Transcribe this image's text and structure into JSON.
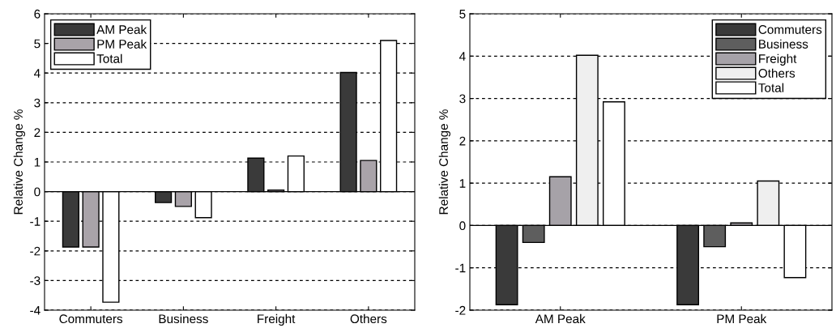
{
  "chart_data": [
    {
      "type": "bar",
      "categories": [
        "Commuters",
        "Business",
        "Freight",
        "Others"
      ],
      "ylabel": "Relative Change %",
      "ylim": [
        -4,
        6
      ],
      "yticks": [
        -4,
        -3,
        -2,
        -1,
        0,
        1,
        2,
        3,
        4,
        5,
        6
      ],
      "grid": "y",
      "legend": "top left",
      "series": [
        {
          "name": "AM Peak",
          "color": "#3a3a3a",
          "values": [
            -1.87,
            -0.37,
            1.13,
            4.02
          ]
        },
        {
          "name": "PM Peak",
          "color": "#a9a3a9",
          "values": [
            -1.87,
            -0.5,
            0.05,
            1.05
          ]
        },
        {
          "name": "Total",
          "color": "#ffffff",
          "values": [
            -3.73,
            -0.88,
            1.2,
            5.1
          ]
        }
      ]
    },
    {
      "type": "bar",
      "categories": [
        "AM Peak",
        "PM Peak"
      ],
      "ylabel": "Relative Change %",
      "ylim": [
        -2,
        5
      ],
      "yticks": [
        -2,
        -1,
        0,
        1,
        2,
        3,
        4,
        5
      ],
      "grid": "y",
      "legend": "top right",
      "series": [
        {
          "name": "Commuters",
          "color": "#3a3a3a",
          "values": [
            -1.87,
            -1.87
          ]
        },
        {
          "name": "Business",
          "color": "#5e5e5e",
          "values": [
            -0.4,
            -0.5
          ]
        },
        {
          "name": "Freight",
          "color": "#a6a2a8",
          "values": [
            1.15,
            0.06
          ]
        },
        {
          "name": "Others",
          "color": "#efefef",
          "values": [
            4.02,
            1.05
          ]
        },
        {
          "name": "Total",
          "color": "#ffffff",
          "values": [
            2.92,
            -1.23
          ]
        }
      ]
    }
  ]
}
